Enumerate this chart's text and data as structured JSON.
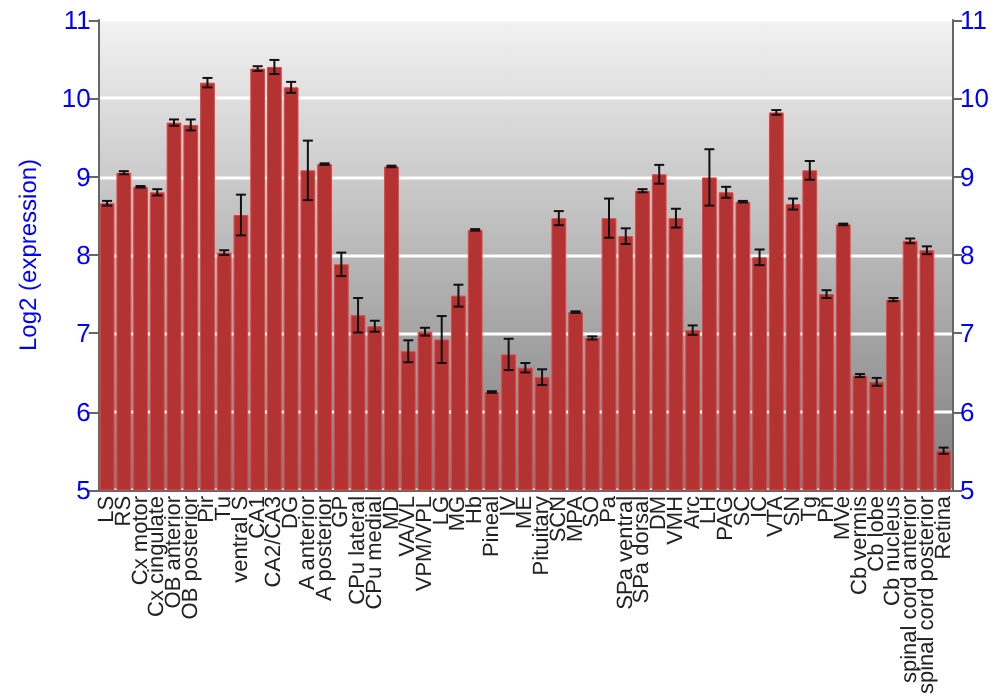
{
  "chart_data": {
    "type": "bar",
    "ylabel": "Log2 (expression)",
    "categories": [
      "LS",
      "RS",
      "Cx motor",
      "Cx cingulate",
      "OB anterior",
      "OB posterior",
      "Pir",
      "Tu",
      "ventral S",
      "CA1",
      "CA2/CA3",
      "DG",
      "A anterior",
      "A posterior",
      "GP",
      "CPu lateral",
      "CPu medial",
      "MD",
      "VA/VL",
      "VPM/VPL",
      "LG",
      "MG",
      "Hb",
      "Pineal",
      "IV",
      "ME",
      "Pituitary",
      "SCN",
      "MPA",
      "SO",
      "Pa",
      "SPa ventral",
      "SPa dorsal",
      "DM",
      "VMH",
      "Arc",
      "LH",
      "PAG",
      "SC",
      "IC",
      "VTA",
      "SN",
      "Tg",
      "Pn",
      "MVe",
      "Cb vermis",
      "Cb lobe",
      "Cb nucleus",
      "spinal cord anterior",
      "spinal cord posterior",
      "Retina"
    ],
    "series": [
      {
        "color": "#b33232",
        "values": [
          8.66,
          9.05,
          8.87,
          8.8,
          9.69,
          9.66,
          10.2,
          8.03,
          8.51,
          10.38,
          10.4,
          10.14,
          9.08,
          9.16,
          7.88,
          7.23,
          7.09,
          9.13,
          6.77,
          7.02,
          6.92,
          7.48,
          8.32,
          6.25,
          6.73,
          6.56,
          6.44,
          8.47,
          7.27,
          6.94,
          8.47,
          8.24,
          8.82,
          9.03,
          8.47,
          7.04,
          8.99,
          8.8,
          8.68,
          7.97,
          9.82,
          8.65,
          9.08,
          7.5,
          8.39,
          6.46,
          6.38,
          7.43,
          8.18,
          8.06,
          5.5
        ],
        "errors": [
          0.03,
          0.02,
          0.01,
          0.04,
          0.04,
          0.07,
          0.06,
          0.03,
          0.26,
          0.03,
          0.09,
          0.07,
          0.38,
          0.01,
          0.15,
          0.22,
          0.07,
          0.01,
          0.14,
          0.05,
          0.3,
          0.14,
          0.01,
          0.01,
          0.2,
          0.06,
          0.1,
          0.09,
          0.01,
          0.02,
          0.25,
          0.1,
          0.02,
          0.12,
          0.12,
          0.06,
          0.36,
          0.07,
          0.01,
          0.1,
          0.03,
          0.07,
          0.12,
          0.05,
          0.01,
          0.02,
          0.05,
          0.02,
          0.03,
          0.05,
          0.04
        ]
      }
    ],
    "ylim": [
      5,
      11
    ],
    "yticks": [
      5,
      6,
      7,
      8,
      9,
      10,
      11
    ],
    "y2lim": [
      5,
      11
    ],
    "y2ticks": [
      5,
      6,
      7,
      8,
      9,
      10,
      11
    ],
    "grid": "y"
  }
}
